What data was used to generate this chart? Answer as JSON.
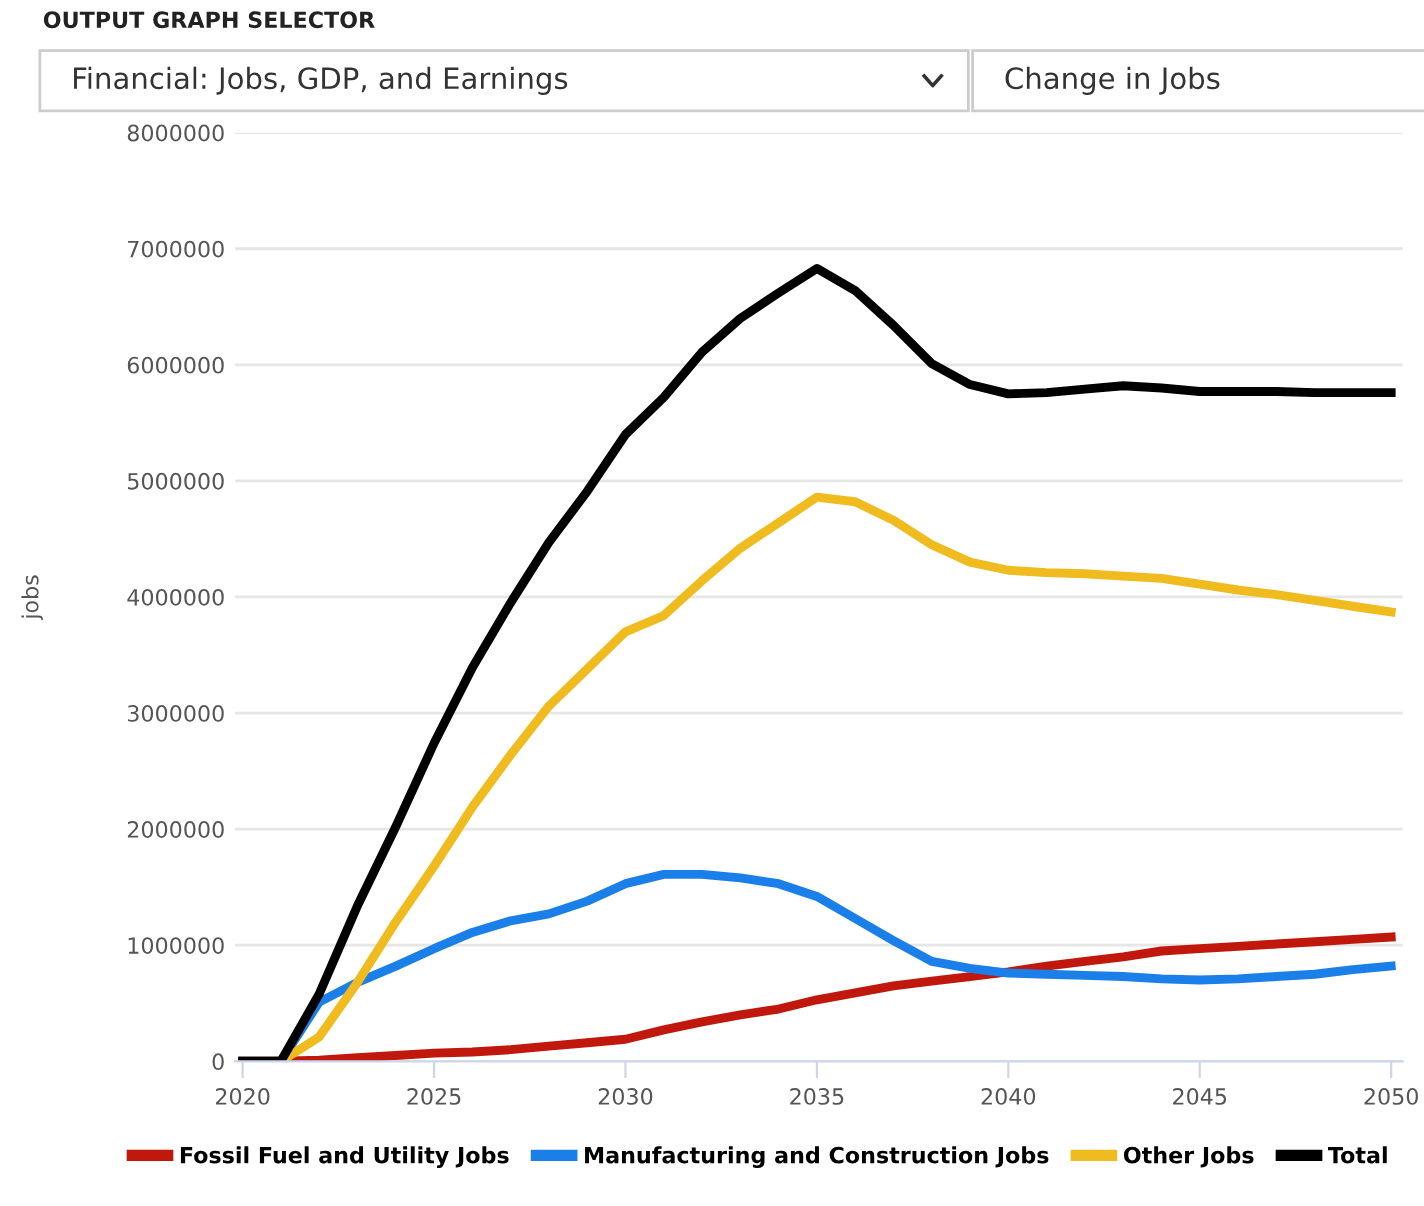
{
  "chart_data": {
    "type": "line",
    "ylabel": "jobs",
    "annotations": [
      "OUTPUT GRAPH SELECTOR",
      "Financial: Jobs, GDP, and Earnings",
      "Change in Jobs"
    ],
    "x": [
      2020,
      2021,
      2022,
      2023,
      2024,
      2025,
      2026,
      2027,
      2028,
      2029,
      2030,
      2031,
      2032,
      2033,
      2034,
      2035,
      2036,
      2037,
      2038,
      2039,
      2040,
      2041,
      2042,
      2043,
      2044,
      2045,
      2046,
      2047,
      2048,
      2049,
      2050
    ],
    "series": [
      {
        "name": "Fossil Fuel and Utility Jobs",
        "color": "#c0180c",
        "values": [
          0,
          0,
          10000,
          30000,
          50000,
          70000,
          80000,
          100000,
          130000,
          160000,
          190000,
          270000,
          340000,
          400000,
          450000,
          530000,
          590000,
          650000,
          690000,
          730000,
          770000,
          820000,
          860000,
          900000,
          950000,
          970000,
          990000,
          1010000,
          1030000,
          1050000,
          1070000
        ]
      },
      {
        "name": "Manufacturing and Construction Jobs",
        "color": "#1a7fe8",
        "values": [
          0,
          0,
          510000,
          680000,
          820000,
          970000,
          1110000,
          1210000,
          1270000,
          1380000,
          1530000,
          1610000,
          1610000,
          1580000,
          1530000,
          1420000,
          1230000,
          1040000,
          860000,
          800000,
          760000,
          750000,
          740000,
          730000,
          710000,
          700000,
          710000,
          730000,
          750000,
          790000,
          820000
        ]
      },
      {
        "name": "Other Jobs",
        "color": "#f0bb1e",
        "values": [
          0,
          0,
          210000,
          680000,
          1200000,
          1680000,
          2190000,
          2640000,
          3060000,
          3380000,
          3700000,
          3840000,
          4140000,
          4420000,
          4640000,
          4860000,
          4820000,
          4660000,
          4450000,
          4300000,
          4230000,
          4210000,
          4200000,
          4180000,
          4160000,
          4110000,
          4060000,
          4020000,
          3970000,
          3920000,
          3870000
        ]
      },
      {
        "name": "Total",
        "color": "#000000",
        "values": [
          0,
          0,
          580000,
          1340000,
          2020000,
          2740000,
          3390000,
          3950000,
          4470000,
          4910000,
          5400000,
          5720000,
          6110000,
          6400000,
          6620000,
          6830000,
          6640000,
          6340000,
          6010000,
          5830000,
          5750000,
          5760000,
          5790000,
          5820000,
          5800000,
          5770000,
          5770000,
          5770000,
          5760000,
          5760000,
          5760000
        ]
      }
    ],
    "xlim": [
      2019.8,
      2050.3
    ],
    "xticks": [
      2020,
      2025,
      2030,
      2035,
      2040,
      2045,
      2050
    ],
    "ylim": [
      0,
      8000000
    ],
    "yticks": [
      0,
      1000000,
      2000000,
      3000000,
      4000000,
      5000000,
      6000000,
      7000000,
      8000000
    ],
    "grid": "y",
    "legend": "bottom",
    "marker": "none",
    "line_style": "solid"
  }
}
